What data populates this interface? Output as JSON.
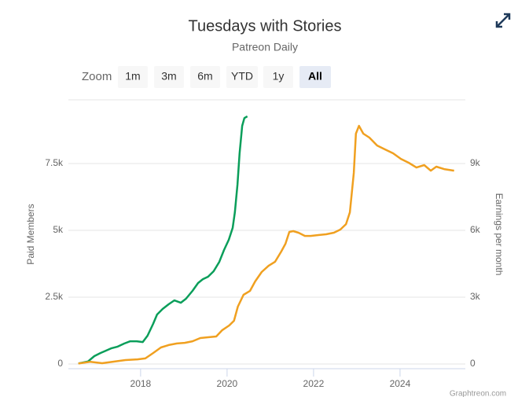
{
  "chart_data": {
    "type": "line",
    "title": "Tuesdays with Stories",
    "subtitle": "Patreon Daily",
    "zoom": {
      "label": "Zoom",
      "buttons": [
        "1m",
        "3m",
        "6m",
        "YTD",
        "1y",
        "All"
      ],
      "selected": 5
    },
    "credit": "Graphtreon.com",
    "ylabel": "Paid Members",
    "y2label": "Earnings per month",
    "xlim": [
      2016.33,
      2025.51
    ],
    "xticks": [
      2018,
      2020,
      2022,
      2024
    ],
    "ylim": [
      0,
      10000
    ],
    "yticks": [
      0,
      {
        "value": 2500,
        "label": "2.5k"
      },
      {
        "value": 5000,
        "label": "5k"
      },
      {
        "value": 7500,
        "label": "7.5k"
      }
    ],
    "y2lim": [
      0,
      12000
    ],
    "y2ticks": [
      0,
      {
        "value": 3000,
        "label": "3k"
      },
      {
        "value": 6000,
        "label": "6k"
      },
      {
        "value": 9000,
        "label": "9k"
      }
    ],
    "grid": true,
    "series": [
      {
        "name": "Paid Members",
        "color": "#0a9e5a",
        "x": [
          2016.56,
          2016.78,
          2016.93,
          2017.07,
          2017.2,
          2017.33,
          2017.47,
          2017.62,
          2017.76,
          2017.91,
          2018.05,
          2018.16,
          2018.29,
          2018.38,
          2018.51,
          2018.65,
          2018.78,
          2018.93,
          2019.05,
          2019.2,
          2019.33,
          2019.44,
          2019.56,
          2019.69,
          2019.82,
          2019.93,
          2020.04,
          2020.13,
          2020.18,
          2020.24,
          2020.29,
          2020.35,
          2020.4,
          2020.47
        ],
        "values": [
          20,
          90,
          295,
          410,
          500,
          590,
          650,
          765,
          850,
          850,
          820,
          1060,
          1500,
          1850,
          2060,
          2235,
          2380,
          2290,
          2440,
          2735,
          3030,
          3175,
          3265,
          3470,
          3820,
          4265,
          4650,
          5090,
          5675,
          6705,
          7880,
          8910,
          9200,
          9265
        ]
      },
      {
        "name": "Earnings per month",
        "color": "#f0a020",
        "axis": "y2",
        "x": [
          2016.56,
          2016.84,
          2017.11,
          2017.38,
          2017.65,
          2017.93,
          2018.11,
          2018.29,
          2018.47,
          2018.65,
          2018.84,
          2019.02,
          2019.2,
          2019.38,
          2019.56,
          2019.75,
          2019.89,
          2020.05,
          2020.16,
          2020.25,
          2020.38,
          2020.53,
          2020.65,
          2020.8,
          2020.96,
          2021.11,
          2021.25,
          2021.35,
          2021.44,
          2021.53,
          2021.65,
          2021.8,
          2021.93,
          2022.11,
          2022.29,
          2022.47,
          2022.62,
          2022.75,
          2022.84,
          2022.93,
          2022.98,
          2023.05,
          2023.15,
          2023.29,
          2023.47,
          2023.65,
          2023.84,
          2024.02,
          2024.2,
          2024.38,
          2024.56,
          2024.71,
          2024.84,
          2025.02,
          2025.25
        ],
        "values": [
          20,
          100,
          35,
          105,
          175,
          210,
          250,
          490,
          740,
          850,
          920,
          950,
          1020,
          1165,
          1200,
          1235,
          1520,
          1730,
          1940,
          2575,
          3105,
          3280,
          3705,
          4130,
          4410,
          4590,
          5045,
          5400,
          5930,
          5965,
          5895,
          5750,
          5750,
          5790,
          5825,
          5895,
          6035,
          6280,
          6810,
          8575,
          10340,
          10690,
          10340,
          10165,
          9810,
          9635,
          9460,
          9210,
          9035,
          8820,
          8930,
          8680,
          8860,
          8750,
          8680
        ]
      }
    ]
  }
}
